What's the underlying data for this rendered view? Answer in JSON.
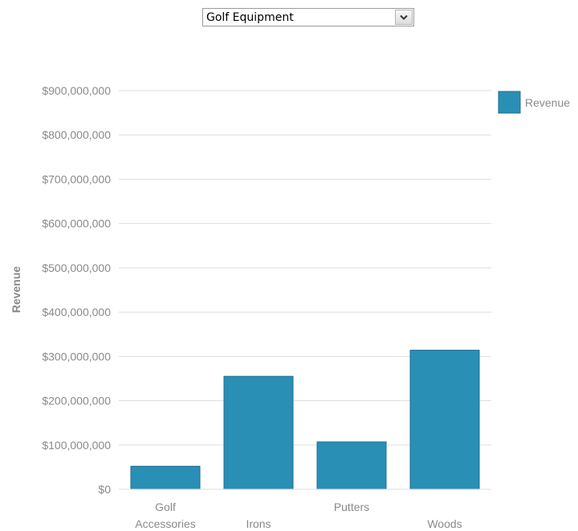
{
  "dropdown": {
    "selected": "Golf Equipment"
  },
  "icons": {
    "dropdown_arrow": "chevron-down-icon"
  },
  "colors": {
    "bar": "#2a8fb5",
    "bar_border": "#1d6e8d",
    "grid": "#dedede",
    "text": "#8a8a8a"
  },
  "chart_data": {
    "type": "bar",
    "categories": [
      [
        "Golf",
        "Accessories"
      ],
      [
        "Irons"
      ],
      [
        "Putters"
      ],
      [
        "Woods"
      ]
    ],
    "series": [
      {
        "name": "Revenue",
        "values": [
          52000000,
          255000000,
          107000000,
          314000000
        ]
      }
    ],
    "ylabel": "Revenue",
    "ylim": [
      0,
      900000000
    ],
    "yticks": [
      0,
      100000000,
      200000000,
      300000000,
      400000000,
      500000000,
      600000000,
      700000000,
      800000000,
      900000000
    ],
    "ytick_labels": [
      "$0",
      "$100,000,000",
      "$200,000,000",
      "$300,000,000",
      "$400,000,000",
      "$500,000,000",
      "$600,000,000",
      "$700,000,000",
      "$800,000,000",
      "$900,000,000"
    ],
    "grid": true,
    "legend_position": "top-right"
  }
}
